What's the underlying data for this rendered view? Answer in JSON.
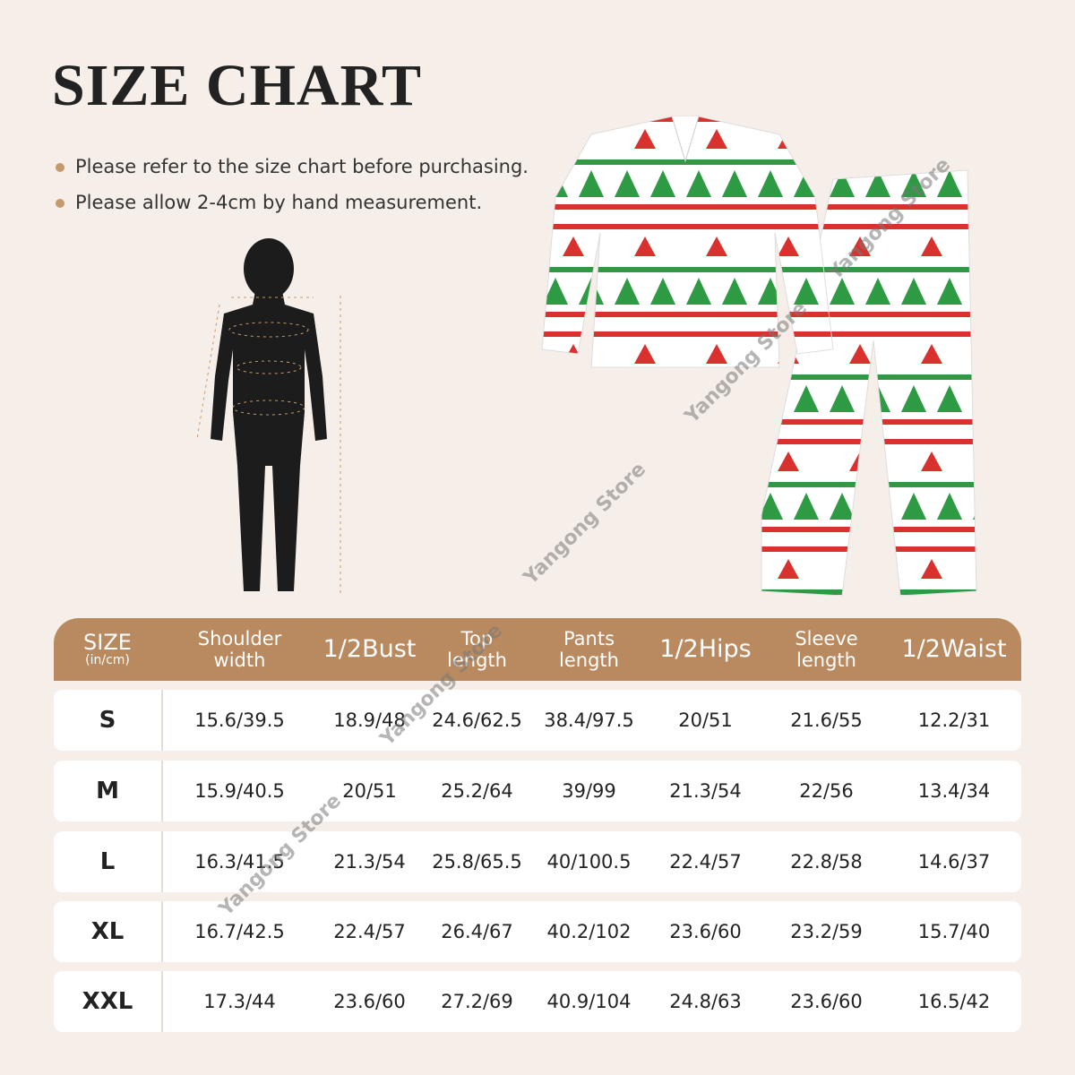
{
  "title": "SIZE CHART",
  "notes": [
    "Please refer to the size chart before purchasing.",
    "Please allow 2-4cm by hand measurement."
  ],
  "watermark": "Yangong Store",
  "table": {
    "header": [
      "SIZE",
      "Shoulder width",
      "1/2Bust",
      "Top length",
      "Pants length",
      "1/2Hips",
      "Sleeve length",
      "1/2Waist"
    ],
    "unit": "(in/cm)",
    "rows": [
      [
        "S",
        "15.6/39.5",
        "18.9/48",
        "24.6/62.5",
        "38.4/97.5",
        "20/51",
        "21.6/55",
        "12.2/31"
      ],
      [
        "M",
        "15.9/40.5",
        "20/51",
        "25.2/64",
        "39/99",
        "21.3/54",
        "22/56",
        "13.4/34"
      ],
      [
        "L",
        "16.3/41.5",
        "21.3/54",
        "25.8/65.5",
        "40/100.5",
        "22.4/57",
        "22.8/58",
        "14.6/37"
      ],
      [
        "XL",
        "16.7/42.5",
        "22.4/57",
        "26.4/67",
        "40.2/102",
        "23.6/60",
        "23.2/59",
        "15.7/40"
      ],
      [
        "XXL",
        "17.3/44",
        "23.6/60",
        "27.2/69",
        "40.9/104",
        "24.8/63",
        "23.6/60",
        "16.5/42"
      ]
    ]
  }
}
